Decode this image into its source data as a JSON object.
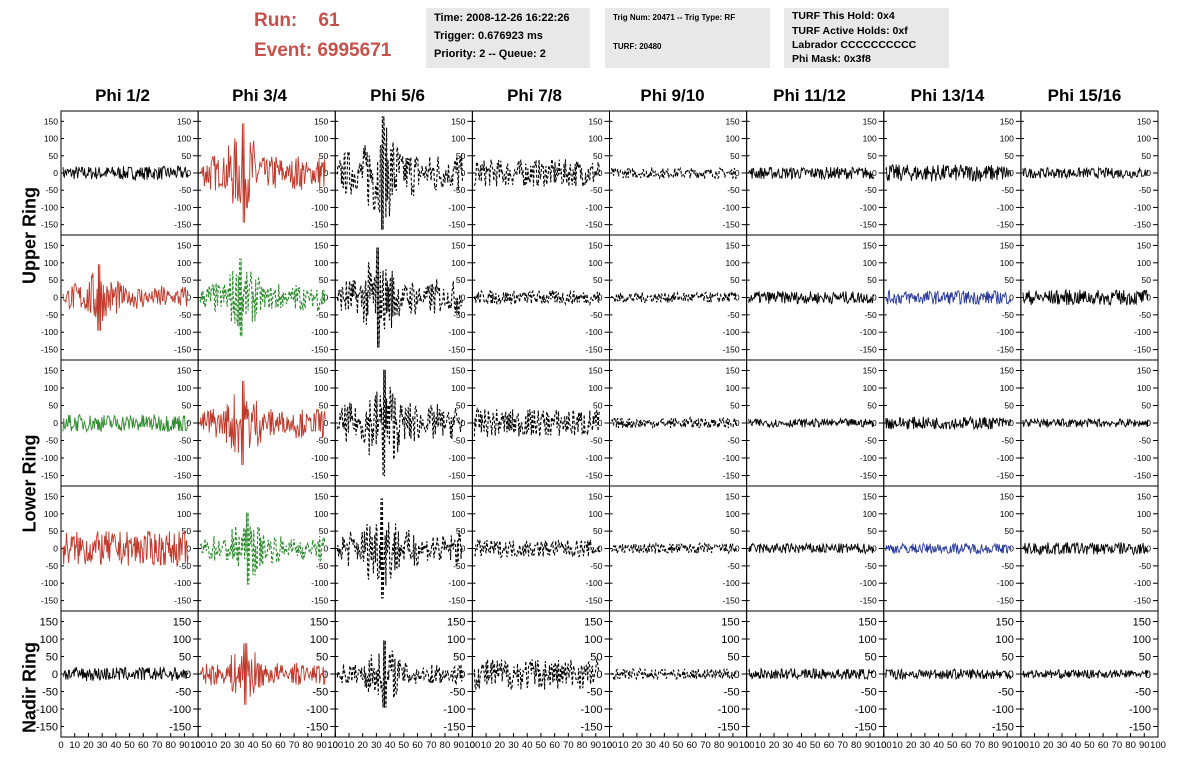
{
  "header": {
    "run_label": "Run:",
    "run_value": "61",
    "event_label": "Event:",
    "event_value": "6995671",
    "box1": [
      "Time: 2008-12-26 16:22:26",
      "Trigger: 0.676923 ms",
      "Priority: 2 -- Queue: 2"
    ],
    "box2": [
      "Trig Num: 20471 -- Trig Type: RF",
      "TURF: 20480"
    ],
    "box3": [
      "TURF This Hold: 0x4",
      "TURF Active Holds: 0xf",
      "Labrador CCCCCCCCCC",
      "Phi Mask: 0x3f8"
    ]
  },
  "chart_data": {
    "type": "line",
    "columns": [
      "Phi 1/2",
      "Phi 3/4",
      "Phi 5/6",
      "Phi 7/8",
      "Phi 9/10",
      "Phi 11/12",
      "Phi 13/14",
      "Phi 15/16"
    ],
    "row_labels": [
      "Upper Ring",
      "Lower Ring",
      "Nadir Ring"
    ],
    "ylim": [
      -180,
      180
    ],
    "xlim": [
      0,
      100
    ],
    "y_ticks": [
      "150",
      "100",
      "50",
      "0",
      "-50",
      "-100",
      "-150"
    ],
    "y_tick_values": [
      150,
      100,
      50,
      0,
      -50,
      -100,
      -150
    ],
    "x_ticks": [
      "0",
      "10",
      "20",
      "30",
      "40",
      "50",
      "60",
      "70",
      "80",
      "90",
      "100"
    ],
    "x_tick_values": [
      0,
      10,
      20,
      30,
      40,
      50,
      60,
      70,
      80,
      90,
      100
    ],
    "colors": {
      "black": "#000000",
      "red": "#c0392b",
      "green": "#2e8b2e",
      "blue": "#2b3b9c"
    },
    "panels": [
      [
        "black",
        "red",
        "black-dash",
        "black-dash",
        "black-dash",
        "black",
        "black",
        "black"
      ],
      [
        "red",
        "green-dash",
        "black-dash",
        "black-dash",
        "black-dash",
        "black",
        "blue",
        "black"
      ],
      [
        "green",
        "red",
        "black-dash",
        "black-dash",
        "black-dash",
        "black",
        "black",
        "black"
      ],
      [
        "red",
        "green-dash",
        "black-dash",
        "black-dash",
        "black-dash",
        "black",
        "blue",
        "black"
      ],
      [
        "black",
        "red",
        "black-dash",
        "black-dash",
        "black-dash",
        "black",
        "black",
        "black"
      ]
    ],
    "amplitudes": [
      [
        20,
        90,
        110,
        40,
        15,
        18,
        25,
        15
      ],
      [
        60,
        70,
        90,
        20,
        15,
        18,
        20,
        22
      ],
      [
        25,
        75,
        95,
        40,
        15,
        12,
        18,
        12
      ],
      [
        50,
        65,
        90,
        25,
        15,
        15,
        15,
        18
      ],
      [
        20,
        55,
        60,
        45,
        15,
        15,
        15,
        12
      ]
    ]
  }
}
